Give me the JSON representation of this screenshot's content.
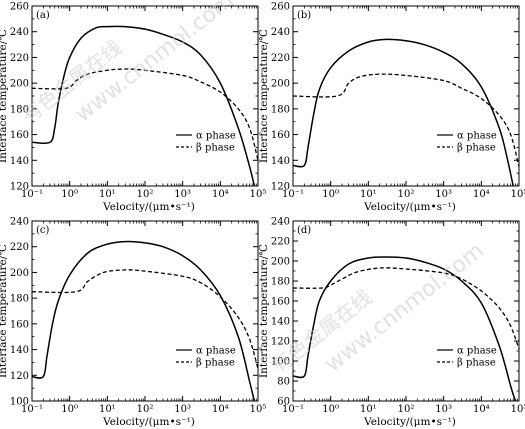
{
  "chart_data": [
    {
      "type": "line",
      "panel_label": "(a)",
      "xlabel": "Velocity/(μm•s⁻¹)",
      "ylabel": "Interface temperature/℃",
      "xscale": "log",
      "xlim": [
        0.1,
        100000
      ],
      "ylim": [
        120,
        260
      ],
      "x_ticks": [
        "10⁻¹",
        "10⁰",
        "10¹",
        "10²",
        "10³",
        "10⁴",
        "10⁵"
      ],
      "y_ticks": [
        "120",
        "140",
        "160",
        "180",
        "200",
        "220",
        "240",
        "260"
      ],
      "legend_position": "right",
      "series": [
        {
          "name": "α phase",
          "style": "solid",
          "points": [
            [
              0.1,
              154
            ],
            [
              0.3,
              154
            ],
            [
              0.4,
              165
            ],
            [
              0.5,
              185
            ],
            [
              0.7,
              205
            ],
            [
              1,
              220
            ],
            [
              2,
              235
            ],
            [
              5,
              243
            ],
            [
              10,
              244
            ],
            [
              30,
              244
            ],
            [
              100,
              242
            ],
            [
              300,
              238
            ],
            [
              1000,
              232
            ],
            [
              3000,
              222
            ],
            [
              10000,
              200
            ],
            [
              30000,
              165
            ],
            [
              60000,
              135
            ],
            [
              80000,
              120
            ]
          ]
        },
        {
          "name": "β phase",
          "style": "dashed",
          "points": [
            [
              0.1,
              196
            ],
            [
              0.8,
              196
            ],
            [
              1.5,
              202
            ],
            [
              3,
              207
            ],
            [
              10,
              210
            ],
            [
              30,
              211
            ],
            [
              100,
              210
            ],
            [
              1000,
              206
            ],
            [
              3000,
              201
            ],
            [
              10000,
              193
            ],
            [
              30000,
              180
            ],
            [
              60000,
              165
            ],
            [
              100000,
              140
            ]
          ]
        }
      ]
    },
    {
      "type": "line",
      "panel_label": "(b)",
      "xlabel": "Velocity/(μm•s⁻¹)",
      "ylabel": "Interface temperature/℃",
      "xscale": "log",
      "xlim": [
        0.1,
        100000
      ],
      "ylim": [
        120,
        260
      ],
      "x_ticks": [
        "10⁻¹",
        "10⁰",
        "10¹",
        "10²",
        "10³",
        "10⁴",
        "10⁵"
      ],
      "y_ticks": [
        "120",
        "140",
        "160",
        "180",
        "200",
        "220",
        "240",
        "260"
      ],
      "legend_position": "right",
      "series": [
        {
          "name": "α phase",
          "style": "solid",
          "points": [
            [
              0.1,
              136
            ],
            [
              0.2,
              136
            ],
            [
              0.25,
              150
            ],
            [
              0.35,
              175
            ],
            [
              0.5,
              195
            ],
            [
              1,
              212
            ],
            [
              3,
              225
            ],
            [
              10,
              232
            ],
            [
              30,
              234
            ],
            [
              100,
              233
            ],
            [
              300,
              230
            ],
            [
              1000,
              224
            ],
            [
              3000,
              215
            ],
            [
              10000,
              197
            ],
            [
              30000,
              165
            ],
            [
              50000,
              140
            ],
            [
              70000,
              120
            ]
          ]
        },
        {
          "name": "β phase",
          "style": "dashed",
          "points": [
            [
              0.1,
              190
            ],
            [
              1.5,
              190
            ],
            [
              3,
              200
            ],
            [
              6,
              205
            ],
            [
              20,
              207
            ],
            [
              100,
              206
            ],
            [
              1000,
              202
            ],
            [
              3000,
              196
            ],
            [
              10000,
              188
            ],
            [
              30000,
              175
            ],
            [
              60000,
              160
            ],
            [
              100000,
              135
            ]
          ]
        }
      ]
    },
    {
      "type": "line",
      "panel_label": "(c)",
      "xlabel": "Velocity/(μm•s⁻¹)",
      "ylabel": "Interface temperature/℃",
      "xscale": "log",
      "xlim": [
        0.1,
        100000
      ],
      "ylim": [
        100,
        240
      ],
      "x_ticks": [
        "10⁻¹",
        "10⁰",
        "10¹",
        "10²",
        "10³",
        "10⁴",
        "10⁵"
      ],
      "y_ticks": [
        "100",
        "120",
        "140",
        "160",
        "180",
        "200",
        "220",
        "240"
      ],
      "legend_position": "right",
      "series": [
        {
          "name": "α phase",
          "style": "solid",
          "points": [
            [
              0.1,
              119
            ],
            [
              0.2,
              119
            ],
            [
              0.25,
              135
            ],
            [
              0.35,
              160
            ],
            [
              0.5,
              178
            ],
            [
              1,
              198
            ],
            [
              3,
              215
            ],
            [
              10,
              222
            ],
            [
              30,
              224
            ],
            [
              100,
              223
            ],
            [
              300,
              220
            ],
            [
              1000,
              213
            ],
            [
              3000,
              202
            ],
            [
              10000,
              182
            ],
            [
              30000,
              150
            ],
            [
              60000,
              115
            ],
            [
              80000,
              100
            ]
          ]
        },
        {
          "name": "β phase",
          "style": "dashed",
          "points": [
            [
              0.1,
              185
            ],
            [
              1.5,
              185
            ],
            [
              3,
              193
            ],
            [
              8,
              200
            ],
            [
              30,
              202
            ],
            [
              100,
              201
            ],
            [
              1000,
              197
            ],
            [
              3000,
              192
            ],
            [
              10000,
              181
            ],
            [
              30000,
              165
            ],
            [
              60000,
              148
            ],
            [
              100000,
              125
            ]
          ]
        }
      ]
    },
    {
      "type": "line",
      "panel_label": "(d)",
      "xlabel": "Velocity/(μm•s⁻¹)",
      "ylabel": "Interface temperature/℃",
      "xscale": "log",
      "xlim": [
        0.1,
        100000
      ],
      "ylim": [
        60,
        240
      ],
      "x_ticks": [
        "10⁻¹",
        "10⁰",
        "10¹",
        "10²",
        "10³",
        "10⁴",
        "10⁵"
      ],
      "y_ticks": [
        "60",
        "80",
        "100",
        "120",
        "140",
        "160",
        "180",
        "200",
        "220",
        "240"
      ],
      "legend_position": "right",
      "series": [
        {
          "name": "α phase",
          "style": "solid",
          "points": [
            [
              0.1,
              85
            ],
            [
              0.2,
              85
            ],
            [
              0.25,
              105
            ],
            [
              0.35,
              135
            ],
            [
              0.5,
              160
            ],
            [
              1,
              180
            ],
            [
              3,
              197
            ],
            [
              10,
              203
            ],
            [
              30,
              204
            ],
            [
              100,
              203
            ],
            [
              300,
              199
            ],
            [
              1000,
              192
            ],
            [
              3000,
              180
            ],
            [
              10000,
              158
            ],
            [
              30000,
              115
            ],
            [
              60000,
              75
            ],
            [
              80000,
              60
            ]
          ]
        },
        {
          "name": "β phase",
          "style": "dashed",
          "points": [
            [
              0.1,
              173
            ],
            [
              0.6,
              173
            ],
            [
              1,
              176
            ],
            [
              2,
              182
            ],
            [
              5,
              189
            ],
            [
              20,
              193
            ],
            [
              100,
              192
            ],
            [
              1000,
              188
            ],
            [
              3000,
              182
            ],
            [
              10000,
              170
            ],
            [
              30000,
              153
            ],
            [
              60000,
              135
            ],
            [
              100000,
              112
            ]
          ]
        }
      ]
    }
  ],
  "watermark": {
    "cn": "有色金属在线",
    "url": "www.cnnmol.com"
  }
}
